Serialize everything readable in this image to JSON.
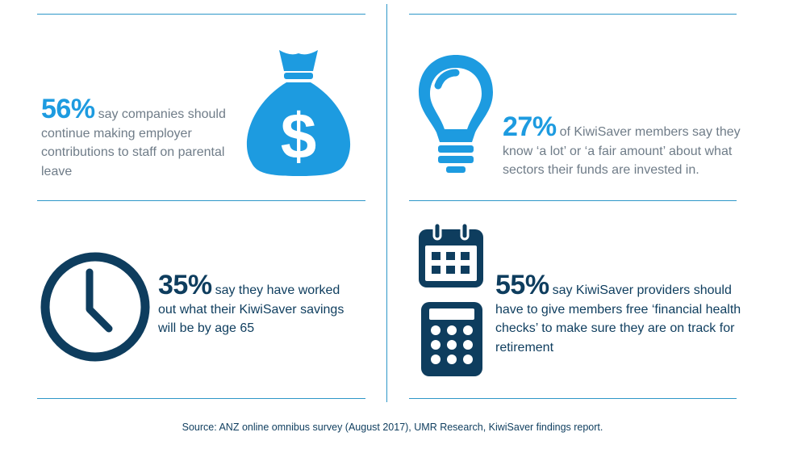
{
  "stats": {
    "s1": {
      "pct": "56%",
      "lines": [
        "say companies should",
        "continue making employer",
        "contributions to staff on parental",
        "leave"
      ]
    },
    "s2": {
      "pct": "27%",
      "lines": [
        "of KiwiSaver members say they",
        "know ‘a lot’ or ‘a fair amount’ about what",
        "sectors their funds are invested in."
      ]
    },
    "s3": {
      "pct": "35%",
      "lines": [
        "say they have worked",
        "out what their KiwiSaver savings",
        "will be by age 65"
      ]
    },
    "s4": {
      "pct": "55%",
      "lines": [
        "say KiwiSaver providers should",
        "have to give members free ‘financial health",
        "checks’ to make sure they are on track for",
        "retirement"
      ]
    }
  },
  "source": "Source: ANZ online omnibus survey (August 2017), UMR Research, KiwiSaver findings report.",
  "colors": {
    "light_blue": "#1d9be0",
    "navy": "#0e3d5e",
    "grey_text": "#6f7c88",
    "rule": "#2e97c8"
  },
  "icons": [
    "money-bag-icon",
    "light-bulb-icon",
    "clock-icon",
    "calendar-icon",
    "calculator-icon"
  ]
}
